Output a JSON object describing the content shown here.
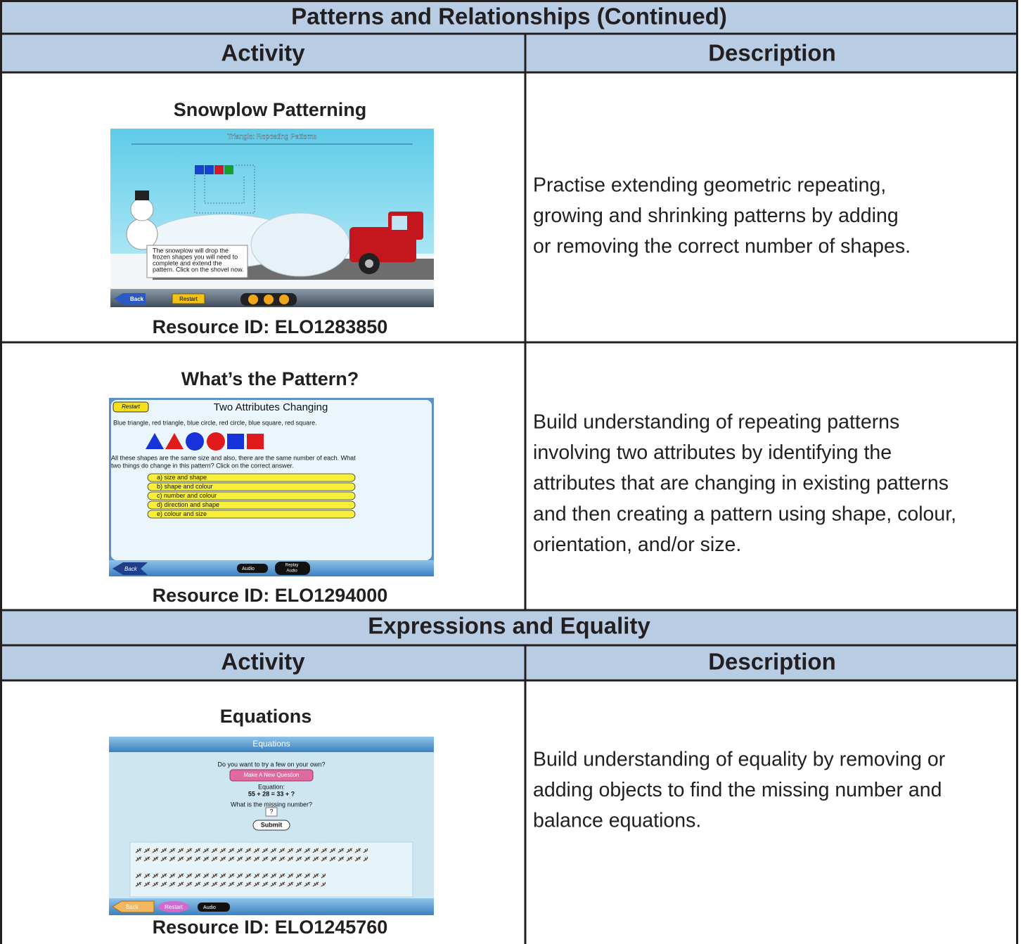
{
  "sections": [
    {
      "title": "Patterns and Relationships (Continued)",
      "headers": [
        "Activity",
        "Description"
      ],
      "rows": [
        {
          "activity": "Snowplow Patterning",
          "resource_id": "Resource ID: ELO1283850",
          "description": [
            "Practise extending geometric repeating,",
            "growing and shrinking patterns by adding",
            "or removing the correct number of shapes."
          ],
          "screenshot": {
            "title": "Triangle: Repeating Patterns",
            "caption": [
              "The snowplow will drop the",
              "frozen shapes you will need to",
              "complete and extend the",
              "pattern. Click on the shovel now."
            ],
            "buttons": [
              "Back",
              "Restart"
            ]
          }
        },
        {
          "activity": "What’s the Pattern?",
          "resource_id": "Resource ID: ELO1294000",
          "description": [
            "Build understanding of repeating patterns",
            "involving two attributes by identifying the",
            "attributes that are changing in existing patterns",
            "and then creating a pattern using shape, colour,",
            "orientation, and/or size."
          ],
          "screenshot": {
            "title": "Two Attributes Changing",
            "prompt": "Blue triangle, red triangle, blue circle, red circle, blue square, red square.",
            "question": [
              "All these shapes are the same size and also, there are the same number of each. What",
              "two things do change in this pattern? Click on the correct answer."
            ],
            "options": [
              "a) size and shape",
              "b) shape and colour",
              "c) number and colour",
              "d) direction and shape",
              "e) colour and size"
            ],
            "buttons": [
              "Restart",
              "Back",
              "Audio"
            ],
            "replay": [
              "Replay",
              "Audio"
            ]
          }
        }
      ]
    },
    {
      "title": "Expressions and Equality",
      "headers": [
        "Activity",
        "Description"
      ],
      "rows": [
        {
          "activity": "Equations",
          "resource_id": "Resource ID: ELO1245760",
          "description": [
            "Build understanding of equality by removing or",
            "adding objects to find the missing number and",
            "balance equations."
          ],
          "screenshot": {
            "title": "Equations",
            "prompt": "Do you want to try a few on your own?",
            "new_question": "Make A New Question",
            "equation_label": "Equation:",
            "equation": "55 + 28 = 33 + ?",
            "question": "What is the missing number?",
            "answer": "?",
            "submit": "Submit",
            "buttons": [
              "Back",
              "Restart",
              "Audio"
            ]
          }
        }
      ]
    }
  ]
}
